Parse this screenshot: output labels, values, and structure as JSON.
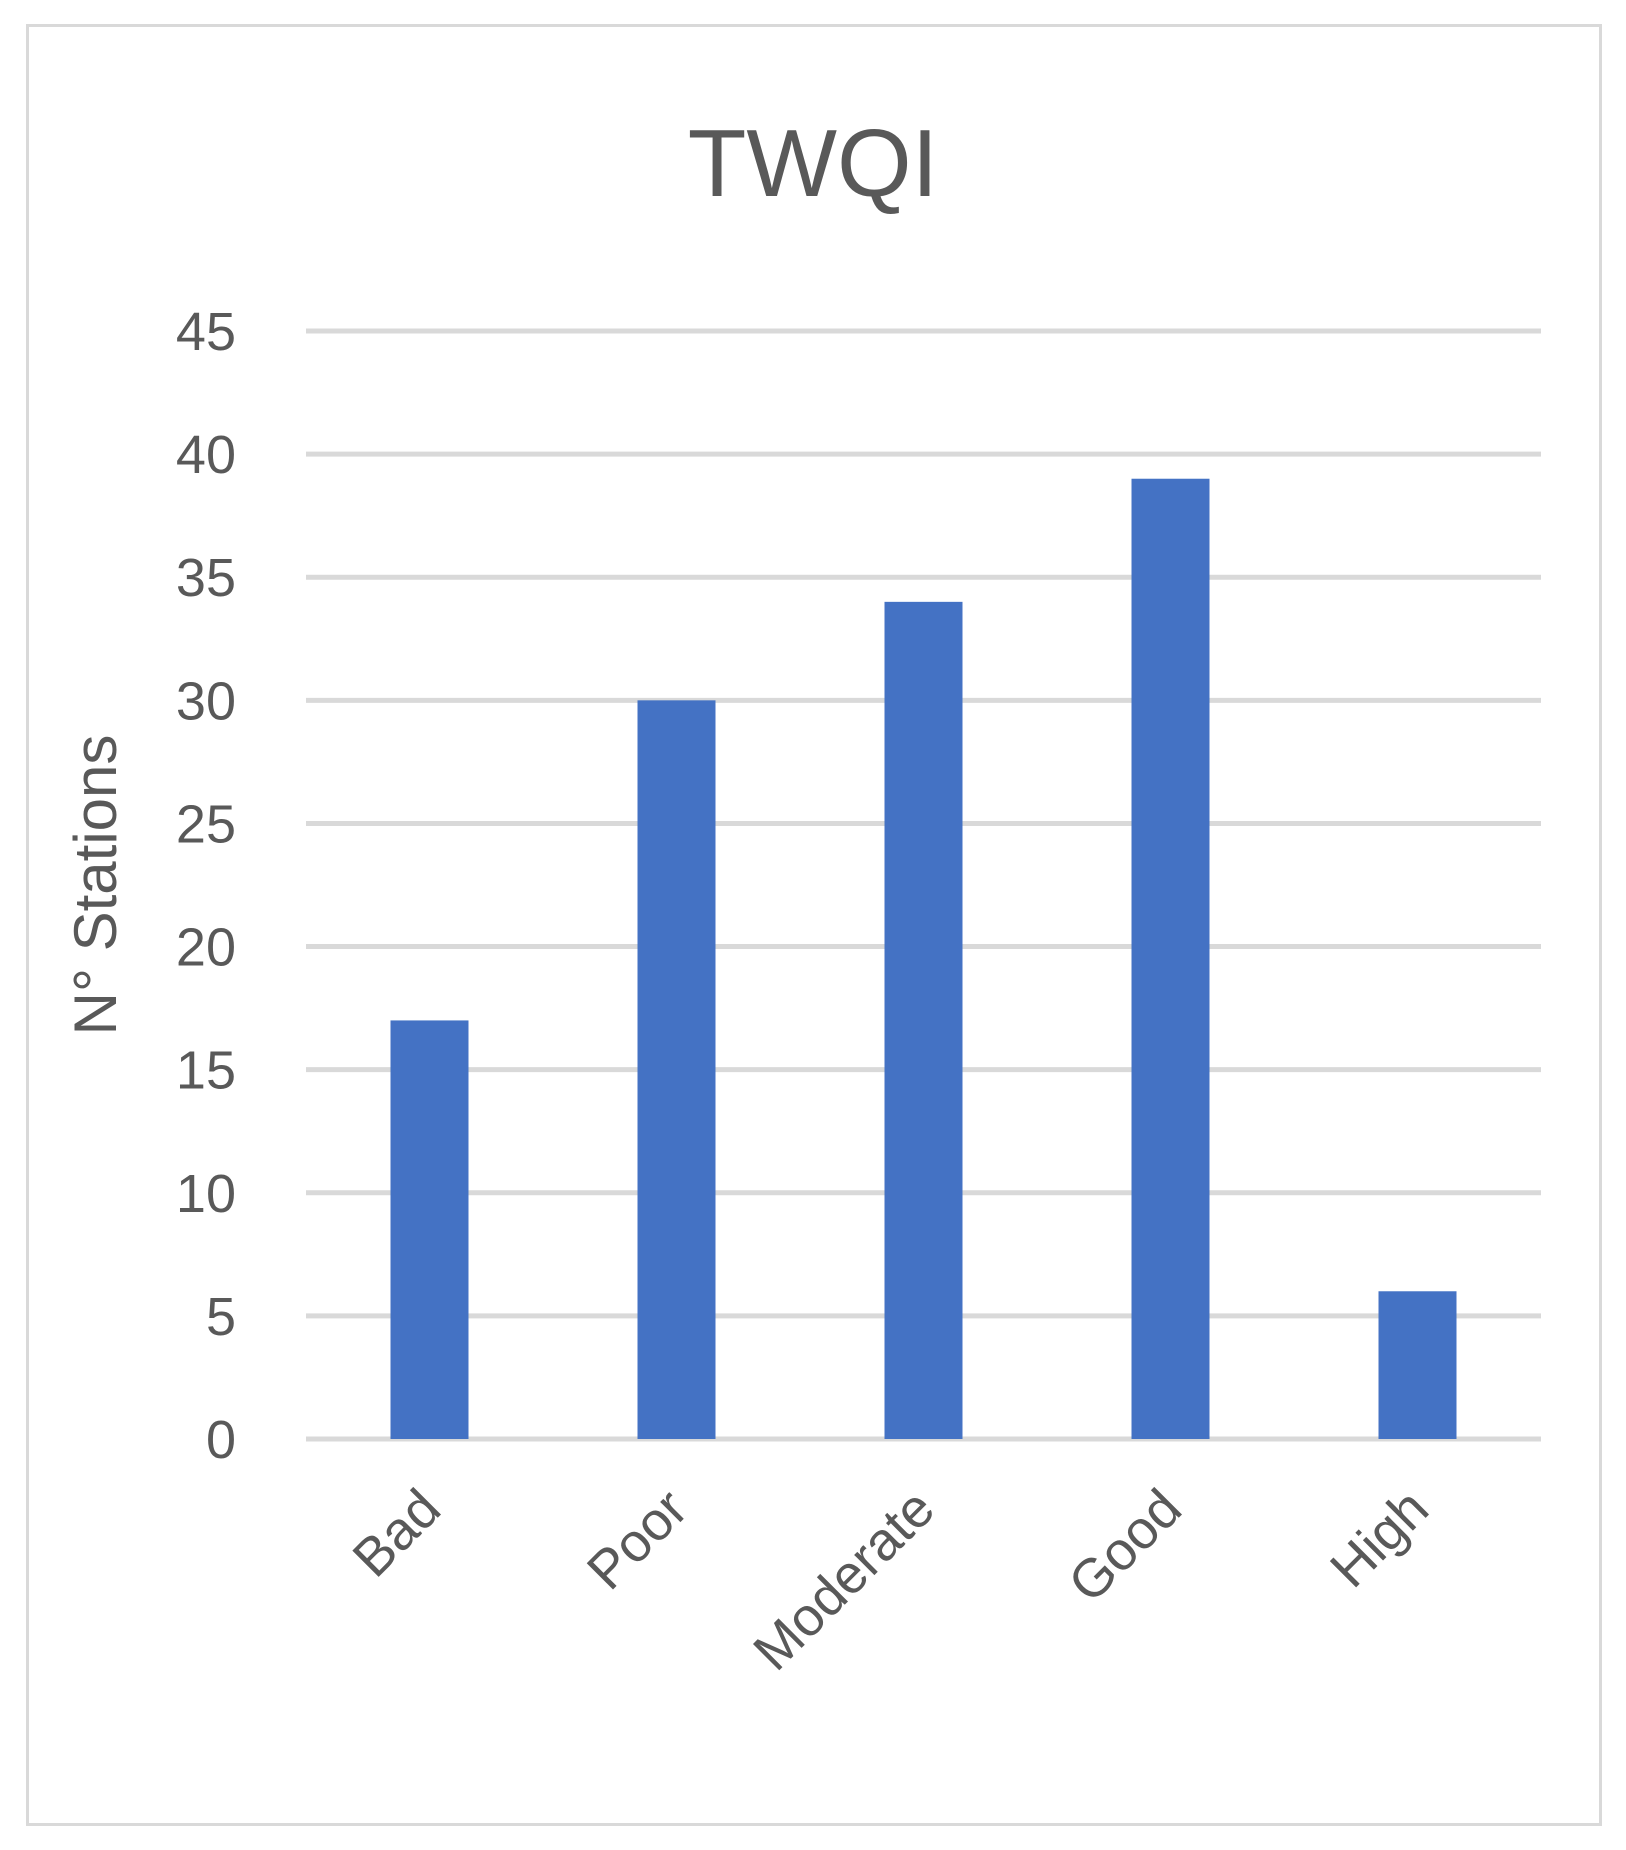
{
  "chart_data": {
    "type": "bar",
    "title": "TWQI",
    "xlabel": "",
    "ylabel": "N° Stations",
    "categories": [
      "Bad",
      "Poor",
      "Moderate",
      "Good",
      "High"
    ],
    "values": [
      17,
      30,
      34,
      39,
      6
    ],
    "ylim": [
      0,
      45
    ],
    "yticks": [
      0,
      5,
      10,
      15,
      20,
      25,
      30,
      35,
      40,
      45
    ],
    "grid": true,
    "legend": "none",
    "bar_color": "#4472c4",
    "grid_color": "#d9d9d9"
  }
}
